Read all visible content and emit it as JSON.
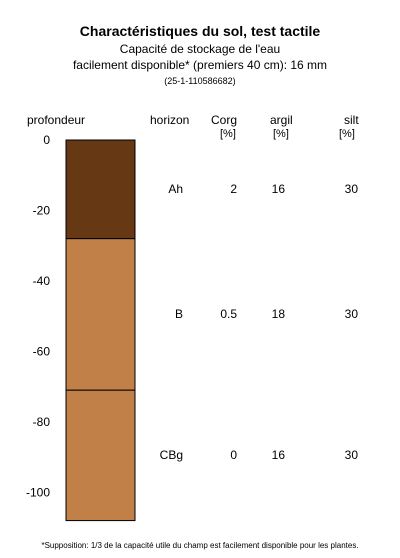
{
  "header": {
    "title": "Charactéristiques du sol, test tactile",
    "subtitle_line1": "Capacité de stockage de l'eau",
    "subtitle_line2": "facilement disponible* (premiers 40 cm): 16 mm",
    "sample_id": "(25-1-110586682)"
  },
  "columns": {
    "depth": "profondeur",
    "horizon": "horizon",
    "corg": "Corg",
    "corg_unit": "[%]",
    "argil": "argil",
    "argil_unit": "[%]",
    "silt": "silt",
    "silt_unit": "[%]"
  },
  "footnote": "*Supposition: 1/3 de la capacité utile du champ est facilement disponible pour les plantes.",
  "colors": {
    "Ah": "#673814",
    "B": "#c08048",
    "CBg": "#c08048"
  },
  "chart_data": {
    "type": "table",
    "ylabel": "profondeur",
    "ylim": [
      -108,
      0
    ],
    "yticks": [
      0,
      -20,
      -40,
      -60,
      -80,
      -100
    ],
    "horizons": [
      {
        "name": "Ah",
        "top": 0,
        "bottom": -28,
        "corg": "2",
        "argil": "16",
        "silt": "30"
      },
      {
        "name": "B",
        "top": -28,
        "bottom": -71,
        "corg": "0.5",
        "argil": "18",
        "silt": "30"
      },
      {
        "name": "CBg",
        "top": -71,
        "bottom": -108,
        "corg": "0",
        "argil": "16",
        "silt": "30"
      }
    ]
  }
}
